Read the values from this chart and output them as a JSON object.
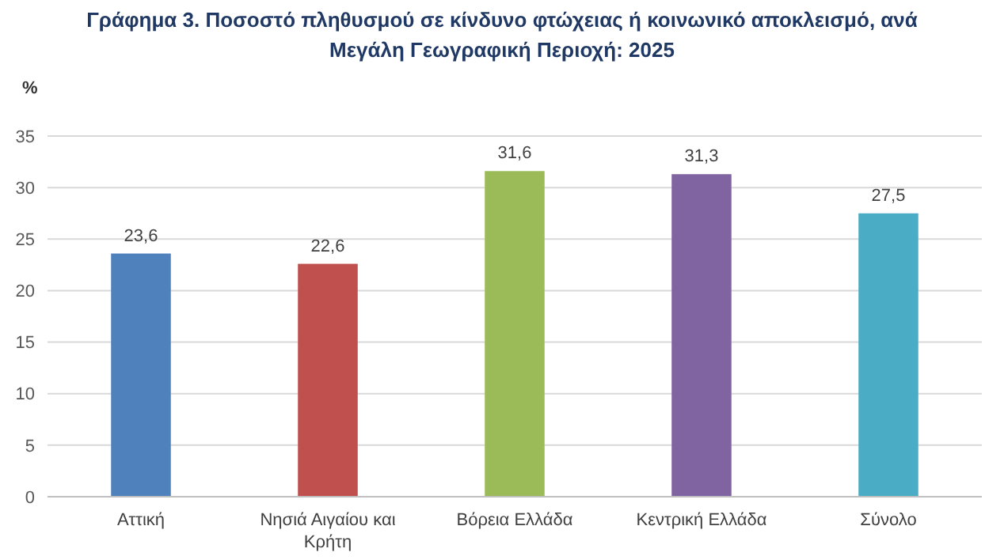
{
  "chart_data": {
    "type": "bar",
    "title": "Γράφημα 3. Ποσοστό πληθυσμού σε κίνδυνο φτώχειας ή κοινωνικό αποκλεισμό, ανά Μεγάλη Γεωγραφική Περιοχή: 2025",
    "ylabel": "%",
    "categories": [
      "Αττική",
      "Νησιά Αιγαίου και Κρήτη",
      "Βόρεια Ελλάδα",
      "Κεντρική Ελλάδα",
      "Σύνολο"
    ],
    "values": [
      23.6,
      22.6,
      31.6,
      31.3,
      27.5
    ],
    "colors": [
      "#4f81bd",
      "#c0504d",
      "#9bbb59",
      "#8064a2",
      "#4bacc6"
    ],
    "value_labels": [
      "23,6",
      "22,6",
      "31,6",
      "31,3",
      "27,5"
    ],
    "ylim": [
      0,
      35
    ],
    "yticks": [
      0,
      5,
      10,
      15,
      20,
      25,
      30,
      35
    ],
    "grid": "y"
  }
}
